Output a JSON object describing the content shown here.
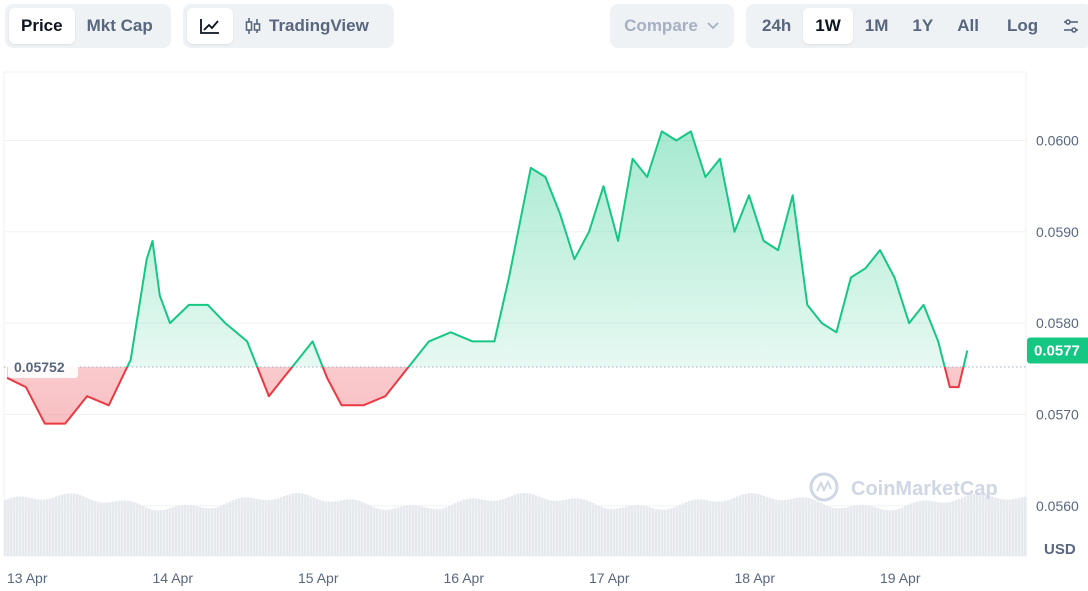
{
  "toolbar": {
    "price_label": "Price",
    "mktcap_label": "Mkt Cap",
    "line_icon": "line-chart-icon",
    "tradingview_icon": "candlestick-icon",
    "tradingview_label": "TradingView",
    "compare_label": "Compare",
    "compare_icon": "chevron-down-icon",
    "ranges": [
      "24h",
      "1W",
      "1M",
      "1Y",
      "All"
    ],
    "active_range": "1W",
    "log_label": "Log",
    "settings_icon": "settings-sliders-icon"
  },
  "chart_data": {
    "type": "area",
    "x_labels": [
      "13 Apr",
      "14 Apr",
      "15 Apr",
      "16 Apr",
      "17 Apr",
      "18 Apr",
      "19 Apr"
    ],
    "y_ticks": [
      "0.0560",
      "0.0570",
      "0.0580",
      "0.0590",
      "0.0600"
    ],
    "ylim": [
      0.05545,
      0.06075
    ],
    "unit_label": "USD",
    "baseline_value": 0.05752,
    "baseline_label": "0.05752",
    "current_value_label": "0.0577",
    "watermark": "CoinMarketCap",
    "colors": {
      "up": "#16c784",
      "down": "#ea3943",
      "grid": "#eff2f5",
      "volume": "#e6e9ee"
    },
    "x_days": [
      0,
      0.13,
      0.26,
      0.4,
      0.55,
      0.7,
      0.85,
      0.92,
      0.96,
      1.0,
      1.05,
      1.12,
      1.25,
      1.38,
      1.5,
      1.65,
      1.8,
      1.9,
      2.0,
      2.1,
      2.2,
      2.3,
      2.45,
      2.6,
      2.75,
      2.9,
      3.05,
      3.2,
      3.35,
      3.45,
      3.55,
      3.6,
      3.7,
      3.8,
      3.9,
      4.0,
      4.1,
      4.2,
      4.3,
      4.4,
      4.5,
      4.6,
      4.7,
      4.8,
      4.9,
      5.0,
      5.1,
      5.2,
      5.3,
      5.4,
      5.5,
      5.6,
      5.7,
      5.8,
      5.9,
      6.0,
      6.1,
      6.2,
      6.3,
      6.4,
      6.48,
      6.54,
      6.6
    ],
    "prices": [
      0.0574,
      0.0573,
      0.0569,
      0.0569,
      0.0572,
      0.0571,
      0.0576,
      0.0583,
      0.0587,
      0.0589,
      0.0583,
      0.058,
      0.0582,
      0.0582,
      0.058,
      0.0578,
      0.0572,
      0.0574,
      0.0576,
      0.0578,
      0.0574,
      0.0571,
      0.0571,
      0.0572,
      0.0575,
      0.0578,
      0.0579,
      0.0578,
      0.0578,
      0.0585,
      0.0593,
      0.0597,
      0.0596,
      0.0592,
      0.0587,
      0.059,
      0.0595,
      0.0589,
      0.0598,
      0.0596,
      0.0601,
      0.06,
      0.0601,
      0.0596,
      0.0598,
      0.059,
      0.0594,
      0.0589,
      0.0588,
      0.0594,
      0.0582,
      0.058,
      0.0579,
      0.0585,
      0.0586,
      0.0588,
      0.0585,
      0.058,
      0.0582,
      0.0578,
      0.0573,
      0.0573,
      0.0577
    ]
  }
}
